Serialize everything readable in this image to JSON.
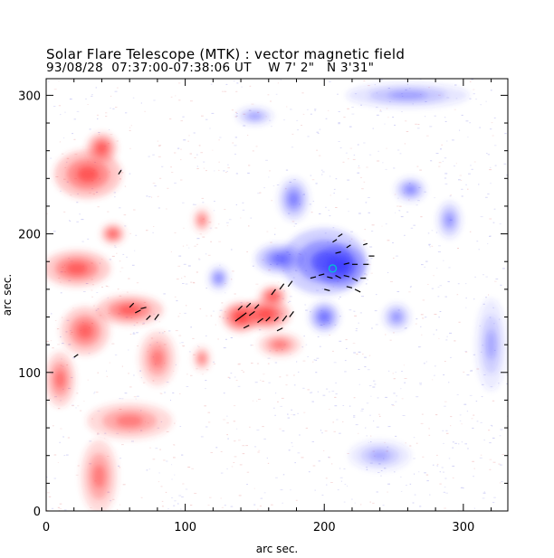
{
  "header": {
    "title": "Solar Flare Telescope (MTK) : vector magnetic field",
    "subtitle": "93/08/28  07:37:00-07:38:06 UT    W 7' 2\"   N 3'31\""
  },
  "colors": {
    "positive": "#ff3b3b",
    "negative": "#3b3bff",
    "vector": "#000000",
    "marker": "#00c8d0"
  },
  "chart_data": {
    "type": "heatmap",
    "title": "Solar Flare Telescope (MTK) : vector magnetic field",
    "xlabel": "arc sec.",
    "ylabel": "arc sec.",
    "xlim": [
      0,
      332
    ],
    "ylim": [
      0,
      312
    ],
    "xticks": [
      "0",
      "100",
      "200",
      "300"
    ],
    "yticks": [
      "0",
      "100",
      "200",
      "300"
    ],
    "positive_regions": [
      {
        "name": "left-plage-upper",
        "cx": 30,
        "cy": 243,
        "rx": 22,
        "ry": 16,
        "peak": 0.8
      },
      {
        "name": "left-plage-knot",
        "cx": 40,
        "cy": 262,
        "rx": 10,
        "ry": 10,
        "peak": 0.8
      },
      {
        "name": "left-plage-mid",
        "cx": 22,
        "cy": 175,
        "rx": 22,
        "ry": 12,
        "peak": 0.75
      },
      {
        "name": "left-plage-spot1",
        "cx": 48,
        "cy": 200,
        "rx": 8,
        "ry": 7,
        "peak": 0.7
      },
      {
        "name": "left-plage-band",
        "cx": 60,
        "cy": 145,
        "rx": 22,
        "ry": 10,
        "peak": 0.75
      },
      {
        "name": "left-plage-lower",
        "cx": 28,
        "cy": 130,
        "rx": 16,
        "ry": 16,
        "peak": 0.7
      },
      {
        "name": "left-plage-chain",
        "cx": 10,
        "cy": 95,
        "rx": 10,
        "ry": 18,
        "peak": 0.6
      },
      {
        "name": "left-plage-ring",
        "cx": 80,
        "cy": 110,
        "rx": 12,
        "ry": 18,
        "peak": 0.55
      },
      {
        "name": "left-plage-bottom",
        "cx": 60,
        "cy": 65,
        "rx": 28,
        "ry": 12,
        "peak": 0.55
      },
      {
        "name": "left-plage-base",
        "cx": 38,
        "cy": 25,
        "rx": 12,
        "ry": 24,
        "peak": 0.55
      },
      {
        "name": "isolated-plage",
        "cx": 112,
        "cy": 210,
        "rx": 6,
        "ry": 8,
        "peak": 0.5
      },
      {
        "name": "isolated-plage-2",
        "cx": 112,
        "cy": 110,
        "rx": 6,
        "ry": 8,
        "peak": 0.5
      },
      {
        "name": "central-positive-spot",
        "cx": 140,
        "cy": 140,
        "rx": 12,
        "ry": 10,
        "peak": 1.0
      },
      {
        "name": "central-positive-tail",
        "cx": 158,
        "cy": 142,
        "rx": 16,
        "ry": 10,
        "peak": 0.9
      },
      {
        "name": "central-positive-arm",
        "cx": 163,
        "cy": 155,
        "rx": 9,
        "ry": 7,
        "peak": 0.8
      },
      {
        "name": "central-positive-lower",
        "cx": 168,
        "cy": 120,
        "rx": 14,
        "ry": 8,
        "peak": 0.55
      }
    ],
    "negative_regions": [
      {
        "name": "negative-spot-core",
        "cx": 212,
        "cy": 177,
        "rx": 16,
        "ry": 14,
        "peak": 1.0
      },
      {
        "name": "negative-spot-halo",
        "cx": 200,
        "cy": 180,
        "rx": 28,
        "ry": 22,
        "peak": 0.7
      },
      {
        "name": "negative-arm-west",
        "cx": 168,
        "cy": 182,
        "rx": 16,
        "ry": 10,
        "peak": 0.6
      },
      {
        "name": "negative-arm-north",
        "cx": 178,
        "cy": 225,
        "rx": 10,
        "ry": 14,
        "peak": 0.5
      },
      {
        "name": "negative-lower-lobe",
        "cx": 200,
        "cy": 140,
        "rx": 10,
        "ry": 10,
        "peak": 0.6
      },
      {
        "name": "negative-patch-1",
        "cx": 124,
        "cy": 168,
        "rx": 7,
        "ry": 8,
        "peak": 0.45
      },
      {
        "name": "negative-patch-2",
        "cx": 262,
        "cy": 232,
        "rx": 10,
        "ry": 8,
        "peak": 0.45
      },
      {
        "name": "negative-patch-3",
        "cx": 252,
        "cy": 140,
        "rx": 9,
        "ry": 9,
        "peak": 0.4
      },
      {
        "name": "negative-patch-4",
        "cx": 290,
        "cy": 210,
        "rx": 8,
        "ry": 12,
        "peak": 0.4
      },
      {
        "name": "negative-network-top",
        "cx": 260,
        "cy": 300,
        "rx": 40,
        "ry": 8,
        "peak": 0.35
      },
      {
        "name": "negative-network-top2",
        "cx": 150,
        "cy": 285,
        "rx": 12,
        "ry": 6,
        "peak": 0.35
      },
      {
        "name": "negative-network-right",
        "cx": 320,
        "cy": 120,
        "rx": 10,
        "ry": 30,
        "peak": 0.3
      },
      {
        "name": "negative-network-bottom",
        "cx": 240,
        "cy": 40,
        "rx": 20,
        "ry": 10,
        "peak": 0.3
      }
    ],
    "vectors": [
      {
        "x": 52,
        "y": 243,
        "dx": 2,
        "dy": 3
      },
      {
        "x": 60,
        "y": 147,
        "dx": 3,
        "dy": 3
      },
      {
        "x": 64,
        "y": 143,
        "dx": 4,
        "dy": 2
      },
      {
        "x": 68,
        "y": 146,
        "dx": 4,
        "dy": 1
      },
      {
        "x": 72,
        "y": 138,
        "dx": 3,
        "dy": 3
      },
      {
        "x": 78,
        "y": 138,
        "dx": 3,
        "dy": 4
      },
      {
        "x": 20,
        "y": 111,
        "dx": 3,
        "dy": 2
      },
      {
        "x": 136,
        "y": 137,
        "dx": 4,
        "dy": 3
      },
      {
        "x": 140,
        "y": 140,
        "dx": 4,
        "dy": 3
      },
      {
        "x": 146,
        "y": 141,
        "dx": 4,
        "dy": 3
      },
      {
        "x": 152,
        "y": 136,
        "dx": 4,
        "dy": 3
      },
      {
        "x": 158,
        "y": 137,
        "dx": 3,
        "dy": 3
      },
      {
        "x": 164,
        "y": 137,
        "dx": 3,
        "dy": 3
      },
      {
        "x": 170,
        "y": 137,
        "dx": 3,
        "dy": 4
      },
      {
        "x": 175,
        "y": 140,
        "dx": 3,
        "dy": 4
      },
      {
        "x": 138,
        "y": 145,
        "dx": 3,
        "dy": 3
      },
      {
        "x": 144,
        "y": 147,
        "dx": 3,
        "dy": 3
      },
      {
        "x": 150,
        "y": 146,
        "dx": 3,
        "dy": 3
      },
      {
        "x": 142,
        "y": 132,
        "dx": 4,
        "dy": 2
      },
      {
        "x": 166,
        "y": 130,
        "dx": 4,
        "dy": 2
      },
      {
        "x": 162,
        "y": 156,
        "dx": 3,
        "dy": 4
      },
      {
        "x": 168,
        "y": 160,
        "dx": 3,
        "dy": 4
      },
      {
        "x": 174,
        "y": 162,
        "dx": 3,
        "dy": 4
      },
      {
        "x": 190,
        "y": 168,
        "dx": 4,
        "dy": 1
      },
      {
        "x": 196,
        "y": 170,
        "dx": 4,
        "dy": 1
      },
      {
        "x": 202,
        "y": 169,
        "dx": 4,
        "dy": -1
      },
      {
        "x": 208,
        "y": 170,
        "dx": 4,
        "dy": -2
      },
      {
        "x": 214,
        "y": 170,
        "dx": 4,
        "dy": -1
      },
      {
        "x": 220,
        "y": 168,
        "dx": 4,
        "dy": -2
      },
      {
        "x": 226,
        "y": 168,
        "dx": 4,
        "dy": 0
      },
      {
        "x": 214,
        "y": 178,
        "dx": 4,
        "dy": 1
      },
      {
        "x": 220,
        "y": 178,
        "dx": 4,
        "dy": 0
      },
      {
        "x": 228,
        "y": 178,
        "dx": 4,
        "dy": 0
      },
      {
        "x": 232,
        "y": 184,
        "dx": 4,
        "dy": 0
      },
      {
        "x": 208,
        "y": 186,
        "dx": 4,
        "dy": 1
      },
      {
        "x": 216,
        "y": 190,
        "dx": 3,
        "dy": 2
      },
      {
        "x": 228,
        "y": 192,
        "dx": 3,
        "dy": 1
      },
      {
        "x": 206,
        "y": 194,
        "dx": 3,
        "dy": 2
      },
      {
        "x": 210,
        "y": 198,
        "dx": 3,
        "dy": 2
      },
      {
        "x": 216,
        "y": 162,
        "dx": 4,
        "dy": -1
      },
      {
        "x": 200,
        "y": 160,
        "dx": 4,
        "dy": -1
      },
      {
        "x": 222,
        "y": 160,
        "dx": 4,
        "dy": -2
      }
    ],
    "marker": {
      "x": 206,
      "y": 175,
      "label": "circle"
    }
  }
}
